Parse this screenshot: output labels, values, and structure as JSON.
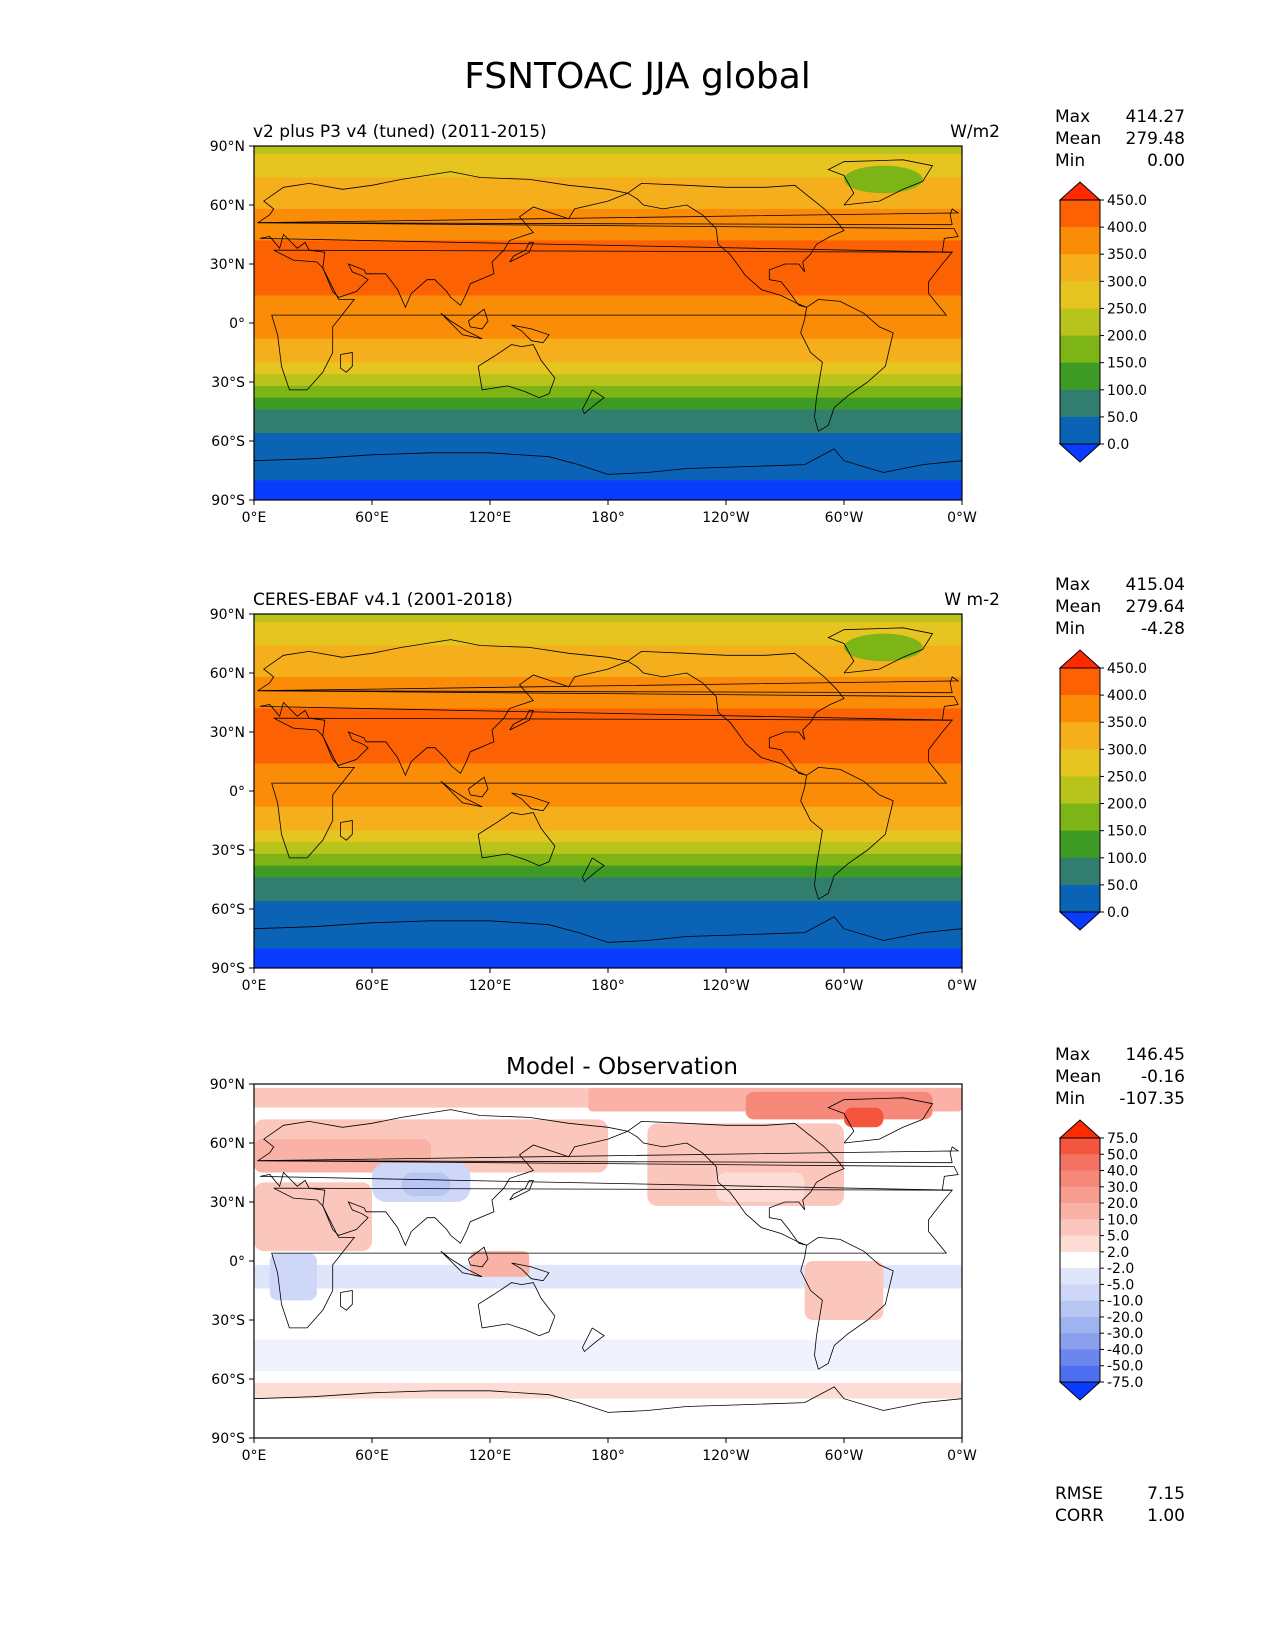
{
  "figure": {
    "title": "FSNTOAC JJA global"
  },
  "axes": {
    "lat_labels": [
      "90°N",
      "60°N",
      "30°N",
      "0°",
      "30°S",
      "60°S",
      "90°S"
    ],
    "lon_labels": [
      "0°E",
      "60°E",
      "120°E",
      "180°",
      "120°W",
      "60°W",
      "0°W"
    ]
  },
  "panels": [
    {
      "left_title": "v2 plus P3 v4 (tuned) (2011-2015)",
      "right_title": "W/m2",
      "center_title": "",
      "stats": [
        {
          "label": "Max",
          "value": "414.27"
        },
        {
          "label": "Mean",
          "value": "279.48"
        },
        {
          "label": "Min",
          "value": "0.00"
        }
      ],
      "colorbar_labels": [
        "450.0",
        "400.0",
        "350.0",
        "300.0",
        "250.0",
        "200.0",
        "150.0",
        "100.0",
        "50.0",
        "0.0"
      ],
      "colorbar_colors": [
        "#ff2a00",
        "#fc6203",
        "#fb8c08",
        "#f5ae1c",
        "#e6c521",
        "#b8c31c",
        "#7db416",
        "#3d9b25",
        "#317e6e",
        "#0a63b4",
        "#0a3cff"
      ]
    },
    {
      "left_title": "CERES-EBAF v4.1 (2001-2018)",
      "right_title": "W m-2",
      "center_title": "",
      "stats": [
        {
          "label": "Max",
          "value": "415.04"
        },
        {
          "label": "Mean",
          "value": "279.64"
        },
        {
          "label": "Min",
          "value": "-4.28"
        }
      ],
      "colorbar_labels": [
        "450.0",
        "400.0",
        "350.0",
        "300.0",
        "250.0",
        "200.0",
        "150.0",
        "100.0",
        "50.0",
        "0.0"
      ],
      "colorbar_colors": [
        "#ff2a00",
        "#fc6203",
        "#fb8c08",
        "#f5ae1c",
        "#e6c521",
        "#b8c31c",
        "#7db416",
        "#3d9b25",
        "#317e6e",
        "#0a63b4",
        "#0a3cff"
      ]
    },
    {
      "left_title": "",
      "right_title": "",
      "center_title": "Model - Observation",
      "stats": [
        {
          "label": "Max",
          "value": "146.45"
        },
        {
          "label": "Mean",
          "value": "-0.16"
        },
        {
          "label": "Min",
          "value": "-107.35"
        }
      ],
      "colorbar_labels": [
        "75.0",
        "50.0",
        "40.0",
        "30.0",
        "20.0",
        "10.0",
        "5.0",
        "2.0",
        "-2.0",
        "-5.0",
        "-10.0",
        "-20.0",
        "-30.0",
        "-40.0",
        "-50.0",
        "-75.0"
      ],
      "colorbar_colors": [
        "#ff2a00",
        "#f4553d",
        "#f47262",
        "#f58878",
        "#f79c8e",
        "#f9b2a5",
        "#fbc7bd",
        "#fddcd6",
        "#ffffff",
        "#dfe5fb",
        "#cfd7f8",
        "#b8c6f4",
        "#9fb3f0",
        "#8aa0ef",
        "#6b87ee",
        "#4e6ef0",
        "#0a3cff"
      ],
      "rmse": [
        {
          "label": "RMSE",
          "value": "7.15"
        },
        {
          "label": "CORR",
          "value": "1.00"
        }
      ]
    }
  ]
}
